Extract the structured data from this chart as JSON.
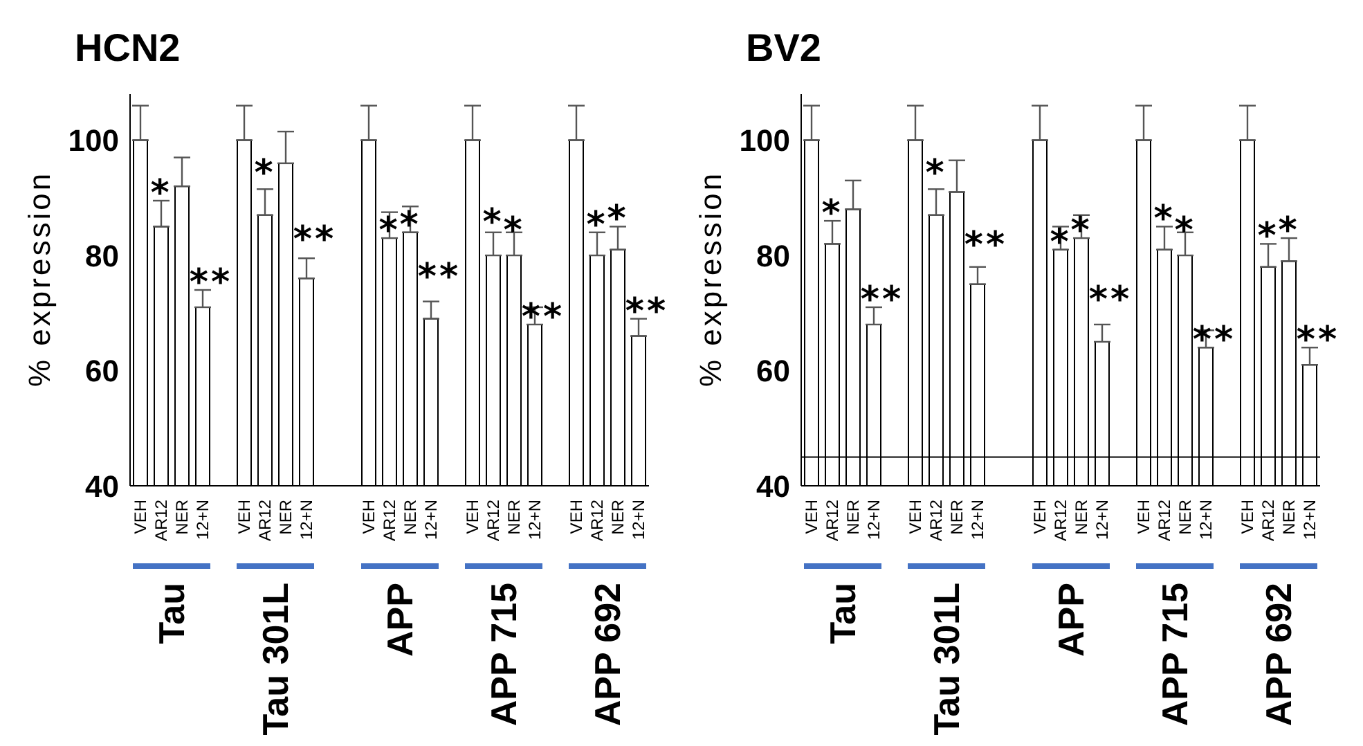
{
  "chart_data": [
    {
      "type": "bar",
      "title": "HCN2",
      "ylabel": "% expression",
      "color": "#ffffff",
      "ylim": [
        40,
        108
      ],
      "yticks": [
        40,
        60,
        80,
        100
      ],
      "categories": [
        "VEH",
        "AR12",
        "NER",
        "12+N",
        null,
        "VEH",
        "AR12",
        "NER",
        "12+N",
        null,
        null,
        "VEH",
        "AR12",
        "NER",
        "12+N",
        null,
        "VEH",
        "AR12",
        "NER",
        "12+N",
        null,
        "VEH",
        "AR12",
        "NER",
        "12+N"
      ],
      "values": [
        100,
        85,
        92,
        71,
        null,
        100,
        87,
        96,
        76,
        null,
        null,
        100,
        83,
        84,
        69,
        null,
        100,
        80,
        80,
        68,
        null,
        100,
        80,
        81,
        66
      ],
      "errors": [
        [
          100,
          106
        ],
        [
          85,
          89.5
        ],
        [
          92,
          97
        ],
        [
          71,
          74
        ],
        null,
        [
          100,
          106
        ],
        [
          87,
          91.5
        ],
        [
          96,
          101.5
        ],
        [
          76,
          79.5
        ],
        null,
        null,
        [
          100,
          106
        ],
        [
          83,
          87.5
        ],
        [
          84,
          88.5
        ],
        [
          69,
          72
        ],
        null,
        [
          100,
          106
        ],
        [
          80,
          84
        ],
        [
          80,
          84
        ],
        [
          68,
          71
        ],
        null,
        [
          100,
          106
        ],
        [
          80,
          84
        ],
        [
          81,
          85
        ],
        [
          66,
          69
        ]
      ],
      "value_labels": [
        null,
        "*",
        null,
        "**",
        null,
        null,
        "*",
        null,
        "**",
        null,
        null,
        null,
        "*",
        "*",
        "**",
        null,
        null,
        "*",
        "*",
        "**",
        null,
        null,
        "*",
        "*",
        "**"
      ],
      "annotations": [
        "Tau",
        "Tau 301L",
        "APP",
        "APP 715",
        "APP 692"
      ]
    },
    {
      "type": "bar",
      "title": "BV2",
      "ylabel": "% expression",
      "color": "#ffffff",
      "ylim": [
        40,
        108
      ],
      "yticks": [
        40,
        60,
        80,
        100
      ],
      "categories": [
        "VEH",
        "AR12",
        "NER",
        "12+N",
        null,
        "VEH",
        "AR12",
        "NER",
        "12+N",
        null,
        null,
        "VEH",
        "AR12",
        "NER",
        "12+N",
        null,
        "VEH",
        "AR12",
        "NER",
        "12+N",
        null,
        "VEH",
        "AR12",
        "NER",
        "12+N"
      ],
      "values": [
        100,
        82,
        88,
        68,
        null,
        100,
        87,
        91,
        75,
        null,
        null,
        100,
        81,
        83,
        65,
        null,
        100,
        81,
        80,
        64,
        null,
        100,
        78,
        79,
        61
      ],
      "errors": [
        [
          100,
          106
        ],
        [
          82,
          86
        ],
        [
          88,
          93
        ],
        [
          68,
          71
        ],
        null,
        [
          100,
          106
        ],
        [
          87,
          91.5
        ],
        [
          91,
          96.5
        ],
        [
          75,
          78
        ],
        null,
        null,
        [
          100,
          106
        ],
        [
          81,
          85
        ],
        [
          83,
          87
        ],
        [
          65,
          68
        ],
        null,
        [
          100,
          106
        ],
        [
          81,
          85
        ],
        [
          80,
          84
        ],
        [
          64,
          67
        ],
        null,
        [
          100,
          106
        ],
        [
          78,
          82
        ],
        [
          79,
          83
        ],
        [
          61,
          64
        ]
      ],
      "value_labels": [
        null,
        "*",
        null,
        "**",
        null,
        null,
        "*",
        null,
        "**",
        null,
        null,
        null,
        "*",
        "*",
        "**",
        null,
        null,
        "*",
        "*",
        "**",
        null,
        null,
        "*",
        "*",
        "**"
      ],
      "annotations": [
        "Tau",
        "Tau 301L",
        "APP",
        "APP 715",
        "APP 692"
      ],
      "ref_lines": [
        {
          "axis": "y",
          "value": 45
        }
      ]
    }
  ]
}
